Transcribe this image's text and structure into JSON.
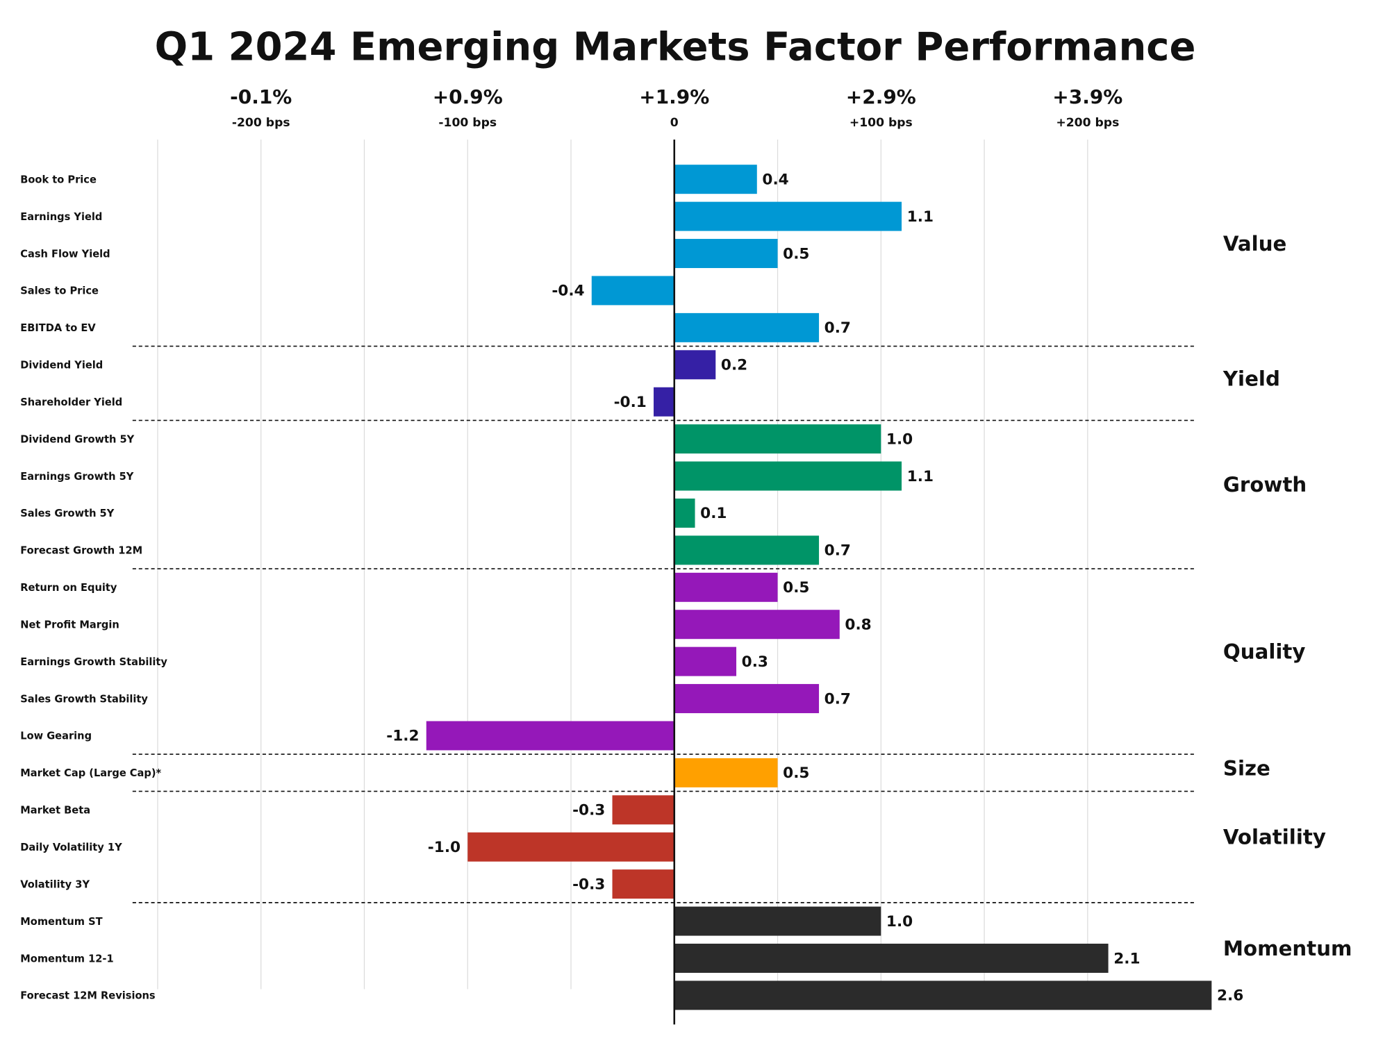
{
  "chart_data": {
    "type": "bar",
    "orientation": "horizontal",
    "title": "Q1 2024 Emerging Markets Factor Performance",
    "xlim": [
      -2.6,
      2.6
    ],
    "xticks": [
      {
        "value": -2,
        "label": "-0.1%",
        "sublabel": "-200 bps"
      },
      {
        "value": -1,
        "label": "+0.9%",
        "sublabel": "-100 bps"
      },
      {
        "value": 0,
        "label": "+1.9%",
        "sublabel": "0"
      },
      {
        "value": 1,
        "label": "+2.9%",
        "sublabel": "+100 bps"
      },
      {
        "value": 2,
        "label": "+3.9%",
        "sublabel": "+200 bps"
      }
    ],
    "grid_lines": [
      -2.5,
      -2,
      -1.5,
      -1,
      -0.5,
      0.5,
      1,
      1.5,
      2
    ],
    "groups": [
      {
        "name": "Value",
        "color": "#0098d4",
        "categories": [
          "Book to Price",
          "Earnings Yield",
          "Cash Flow Yield",
          "Sales to Price",
          "EBITDA to EV"
        ],
        "values": [
          0.4,
          1.1,
          0.5,
          -0.4,
          0.7
        ],
        "value_labels": [
          "0.4",
          "1.1",
          "0.5",
          "-0.4",
          "0.7"
        ]
      },
      {
        "name": "Yield",
        "color": "#3520a5",
        "categories": [
          "Dividend Yield",
          "Shareholder Yield"
        ],
        "values": [
          0.2,
          -0.1
        ],
        "value_labels": [
          "0.2",
          "-0.1"
        ]
      },
      {
        "name": "Growth",
        "color": "#009467",
        "categories": [
          "Dividend Growth 5Y",
          "Earnings Growth 5Y",
          "Sales Growth 5Y",
          "Forecast Growth 12M"
        ],
        "values": [
          1.0,
          1.1,
          0.1,
          0.7
        ],
        "value_labels": [
          "1.0",
          "1.1",
          "0.1",
          "0.7"
        ]
      },
      {
        "name": "Quality",
        "color": "#9518b9",
        "categories": [
          "Return on Equity",
          "Net Profit Margin",
          "Earnings Growth Stability",
          "Sales Growth Stability",
          "Low Gearing"
        ],
        "values": [
          0.5,
          0.8,
          0.3,
          0.7,
          -1.2
        ],
        "value_labels": [
          "0.5",
          "0.8",
          "0.3",
          "0.7",
          "-1.2"
        ]
      },
      {
        "name": "Size",
        "color": "#ffa000",
        "categories": [
          "Market Cap (Large Cap)*"
        ],
        "values": [
          0.5
        ],
        "value_labels": [
          "0.5"
        ]
      },
      {
        "name": "Volatility",
        "color": "#bd3528",
        "categories": [
          "Market Beta",
          "Daily Volatility 1Y",
          "Volatility 3Y"
        ],
        "values": [
          -0.3,
          -1.0,
          -0.3
        ],
        "value_labels": [
          "-0.3",
          "-1.0",
          "-0.3"
        ]
      },
      {
        "name": "Momentum",
        "color": "#2b2b2b",
        "categories": [
          "Momentum ST",
          "Momentum 12-1",
          "Forecast 12M Revisions"
        ],
        "values": [
          1.0,
          2.1,
          2.6
        ],
        "value_labels": [
          "1.0",
          "2.1",
          "2.6"
        ]
      }
    ]
  }
}
